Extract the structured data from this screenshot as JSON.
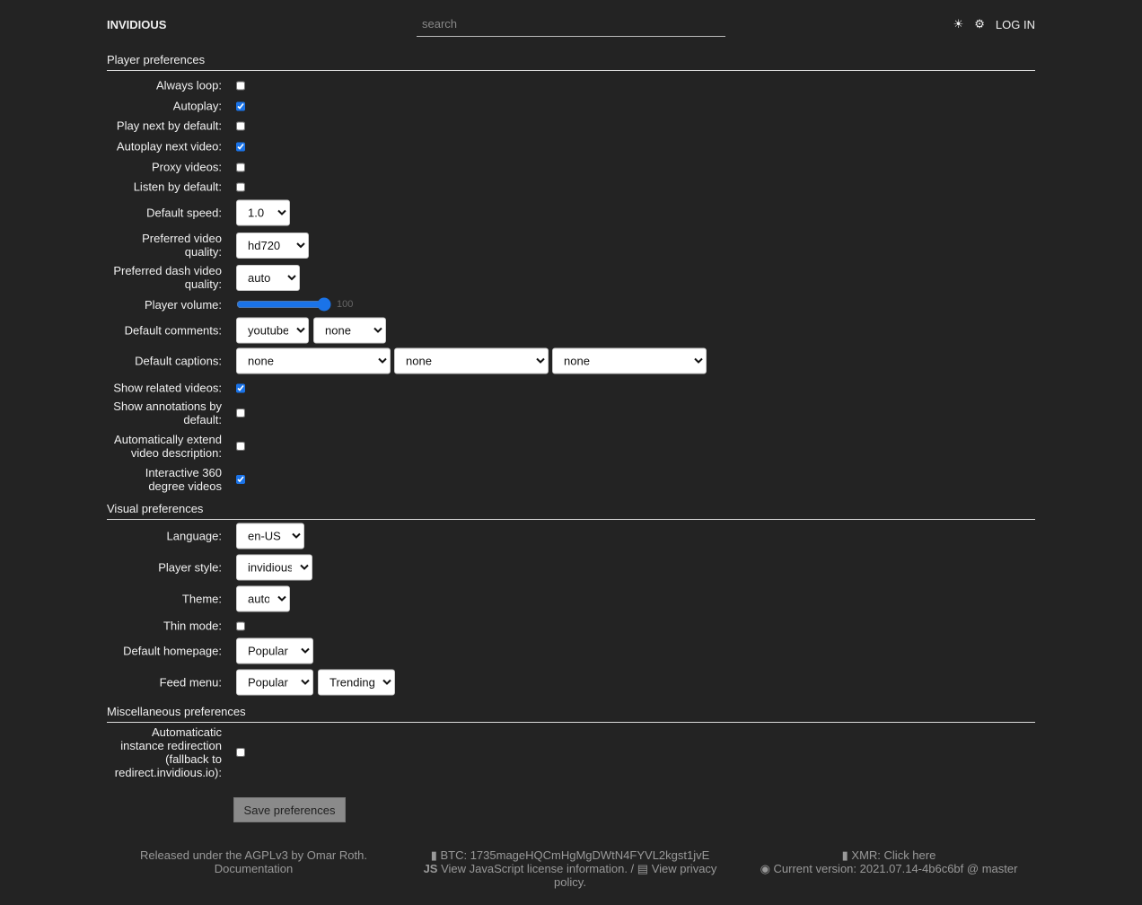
{
  "header": {
    "brand": "INVIDIOUS",
    "search_placeholder": "search",
    "theme_icon": "sun-icon",
    "settings_icon": "gear-icon",
    "login": "LOG IN"
  },
  "player": {
    "title": "Player preferences",
    "always_loop": {
      "label": "Always loop:",
      "checked": false
    },
    "autoplay": {
      "label": "Autoplay:",
      "checked": true
    },
    "play_next": {
      "label": "Play next by default:",
      "checked": false
    },
    "autoplay_next": {
      "label": "Autoplay next video:",
      "checked": true
    },
    "proxy": {
      "label": "Proxy videos:",
      "checked": false
    },
    "listen": {
      "label": "Listen by default:",
      "checked": false
    },
    "speed": {
      "label": "Default speed:",
      "value": "1.0"
    },
    "quality": {
      "label": "Preferred video quality:",
      "value": "hd720"
    },
    "dash_quality": {
      "label": "Preferred dash video quality:",
      "value": "auto"
    },
    "volume": {
      "label": "Player volume:",
      "value": "100"
    },
    "comments": {
      "label": "Default comments:",
      "values": [
        "youtube",
        "none"
      ]
    },
    "captions": {
      "label": "Default captions:",
      "values": [
        "none",
        "none",
        "none"
      ]
    },
    "related": {
      "label": "Show related videos:",
      "checked": true
    },
    "annotations": {
      "label": "Show annotations by default:",
      "checked": false
    },
    "extend_desc": {
      "label": "Automatically extend video description:",
      "checked": false
    },
    "vr360": {
      "label": "Interactive 360 degree videos",
      "checked": true
    }
  },
  "visual": {
    "title": "Visual preferences",
    "language": {
      "label": "Language:",
      "value": "en-US"
    },
    "player_style": {
      "label": "Player style:",
      "value": "invidious"
    },
    "theme": {
      "label": "Theme:",
      "value": "auto"
    },
    "thin": {
      "label": "Thin mode:",
      "checked": false
    },
    "homepage": {
      "label": "Default homepage:",
      "value": "Popular"
    },
    "feed_menu": {
      "label": "Feed menu:",
      "values": [
        "Popular",
        "Trending"
      ]
    }
  },
  "misc": {
    "title": "Miscellaneous preferences",
    "redirect": {
      "label": "Automaticatic instance redirection (fallback to redirect.invidious.io):",
      "checked": false
    }
  },
  "save_label": "Save preferences",
  "footer": {
    "license": "Released under the AGPLv3 by Omar Roth.",
    "docs": "Documentation",
    "btc": "BTC: 1735mageHQCmHgMgDWtN4FYVL2kgst1jvE",
    "js_license": "View JavaScript license information.",
    "sep": " / ",
    "privacy": "View privacy policy.",
    "xmr": "XMR: Click here",
    "version": "Current version: 2021.07.14-4b6c6bf @ master"
  }
}
